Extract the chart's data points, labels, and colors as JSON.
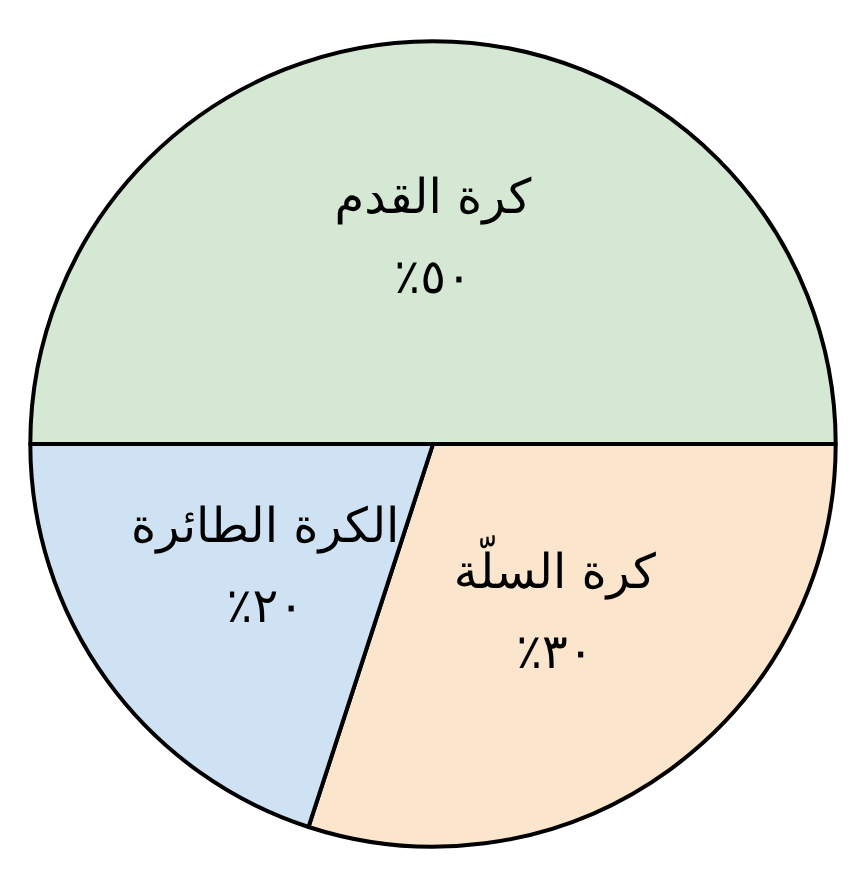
{
  "chart_data": {
    "type": "pie",
    "categories": [
      "كرة القدم",
      "كرة السلّة",
      "الكرة الطائرة"
    ],
    "values": [
      50,
      30,
      20
    ],
    "value_labels": [
      "٪٥٠",
      "٪٣٠",
      "٪٢٠"
    ],
    "colors": [
      "#d5e8d4",
      "#fce5cd",
      "#cfe2f3"
    ],
    "legend": false
  }
}
